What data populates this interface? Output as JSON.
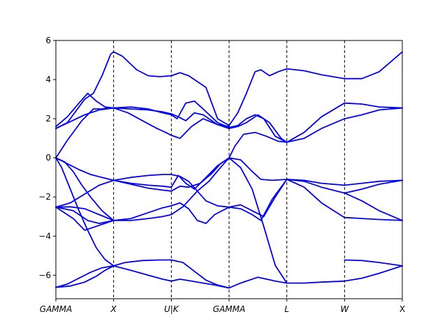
{
  "chart_data": {
    "type": "line",
    "title": "",
    "xlabel": "",
    "ylabel": "",
    "xlim": [
      0,
      6
    ],
    "ylim": [
      -7.2,
      6
    ],
    "grid": false,
    "legend": "none",
    "line_color": "#0000ee",
    "y_ticks": [
      {
        "value": -6,
        "label": "−6"
      },
      {
        "value": -4,
        "label": "−4"
      },
      {
        "value": -2,
        "label": "−2"
      },
      {
        "value": 0,
        "label": "0"
      },
      {
        "value": 2,
        "label": "2"
      },
      {
        "value": 4,
        "label": "4"
      },
      {
        "value": 6,
        "label": "6"
      }
    ],
    "x_ticks": [
      {
        "value": 0,
        "label": "GAMMA",
        "italic": true
      },
      {
        "value": 1,
        "label": "X",
        "italic": true
      },
      {
        "value": 2,
        "label": "U|K",
        "italic": true
      },
      {
        "value": 3,
        "label": "GAMMA",
        "italic": true
      },
      {
        "value": 4,
        "label": "L",
        "italic": true
      },
      {
        "value": 5,
        "label": "W",
        "italic": true
      },
      {
        "value": 6,
        "label": "X",
        "italic": false
      }
    ],
    "high_symmetry_lines": [
      1,
      2,
      3,
      4,
      5
    ],
    "series": [
      {
        "x": [
          0,
          0.25,
          0.5,
          0.7,
          0.85,
          1.0
        ],
        "y": [
          -6.62,
          -6.55,
          -6.35,
          -6.05,
          -5.75,
          -5.52
        ]
      },
      {
        "x": [
          0,
          0.2,
          0.4,
          0.6,
          0.8,
          1.0
        ],
        "y": [
          -6.62,
          -6.45,
          -6.15,
          -5.85,
          -5.62,
          -5.52
        ]
      },
      {
        "x": [
          1.0,
          1.3,
          1.6,
          1.85,
          2.0
        ],
        "y": [
          -5.52,
          -5.75,
          -6.0,
          -6.2,
          -6.3
        ]
      },
      {
        "x": [
          1.0,
          1.2,
          1.5,
          1.8,
          2.0
        ],
        "y": [
          -5.52,
          -5.35,
          -5.25,
          -5.22,
          -5.22
        ]
      },
      {
        "x": [
          2.0,
          2.15,
          2.35,
          2.55,
          2.75,
          3.0
        ],
        "y": [
          -6.3,
          -6.2,
          -6.3,
          -6.4,
          -6.5,
          -6.65
        ]
      },
      {
        "x": [
          2.0,
          2.2,
          2.4,
          2.6,
          2.8,
          3.0
        ],
        "y": [
          -5.22,
          -5.35,
          -5.8,
          -6.25,
          -6.5,
          -6.65
        ]
      },
      {
        "x": [
          3.0,
          3.2,
          3.5,
          3.8,
          4.0
        ],
        "y": [
          -6.65,
          -6.4,
          -6.1,
          -6.3,
          -6.4
        ]
      },
      {
        "x": [
          4.0,
          4.3,
          4.6,
          5.0
        ],
        "y": [
          -6.4,
          -6.4,
          -6.35,
          -6.3
        ]
      },
      {
        "x": [
          5.0,
          5.3,
          5.6,
          6.0
        ],
        "y": [
          -6.3,
          -6.15,
          -5.9,
          -5.52
        ]
      },
      {
        "x": [
          5.0,
          5.3,
          5.6,
          6.0
        ],
        "y": [
          -5.22,
          -5.25,
          -5.35,
          -5.52
        ]
      },
      {
        "x": [
          0,
          0.1,
          0.25,
          0.4,
          0.55,
          0.7,
          0.85,
          1.0
        ],
        "y": [
          0.0,
          -0.5,
          -1.6,
          -2.7,
          -3.7,
          -4.6,
          -5.2,
          -5.52
        ]
      },
      {
        "x": [
          0,
          0.15,
          0.3,
          0.45,
          0.6,
          0.8,
          1.0
        ],
        "y": [
          0.0,
          -0.2,
          -0.7,
          -1.4,
          -2.0,
          -2.7,
          -3.2
        ]
      },
      {
        "x": [
          0,
          0.2,
          0.4,
          0.6,
          0.8,
          1.0
        ],
        "y": [
          0.0,
          -0.3,
          -0.6,
          -0.85,
          -1.0,
          -1.15
        ]
      },
      {
        "x": [
          0,
          0.25,
          0.5,
          0.75,
          1.0
        ],
        "y": [
          -2.52,
          -2.3,
          -1.85,
          -1.4,
          -1.15
        ]
      },
      {
        "x": [
          0,
          0.3,
          0.55,
          0.75,
          1.0
        ],
        "y": [
          -2.52,
          -2.7,
          -3.2,
          -3.35,
          -3.2
        ]
      },
      {
        "x": [
          0,
          0.25,
          0.5,
          0.75,
          1.0
        ],
        "y": [
          -2.52,
          -2.5,
          -2.6,
          -2.9,
          -3.2
        ]
      },
      {
        "x": [
          0,
          0.3,
          0.5,
          0.7,
          1.0
        ],
        "y": [
          -2.52,
          -3.1,
          -3.7,
          -3.5,
          -3.2
        ]
      },
      {
        "x": [
          1.0,
          1.3,
          1.6,
          1.85,
          2.0
        ],
        "y": [
          -1.15,
          -1.0,
          -0.9,
          -0.85,
          -0.85
        ]
      },
      {
        "x": [
          1.0,
          1.3,
          1.6,
          1.85,
          2.0
        ],
        "y": [
          -1.15,
          -1.3,
          -1.4,
          -1.45,
          -1.5
        ]
      },
      {
        "x": [
          1.0,
          1.3,
          1.6,
          1.85,
          2.0
        ],
        "y": [
          -1.15,
          -1.35,
          -1.55,
          -1.65,
          -1.7
        ]
      },
      {
        "x": [
          1.0,
          1.3,
          1.6,
          1.85,
          2.0
        ],
        "y": [
          -3.2,
          -3.1,
          -2.8,
          -2.55,
          -2.45
        ]
      },
      {
        "x": [
          1.0,
          1.3,
          1.6,
          1.85,
          2.0
        ],
        "y": [
          -3.2,
          -3.2,
          -3.1,
          -3.0,
          -2.9
        ]
      },
      {
        "x": [
          2.0,
          2.15,
          2.3,
          2.45,
          2.6,
          2.8,
          3.0
        ],
        "y": [
          -0.85,
          -0.95,
          -1.2,
          -1.7,
          -2.2,
          -2.45,
          -2.52
        ]
      },
      {
        "x": [
          2.0,
          2.12,
          2.25,
          2.4,
          2.6,
          2.8,
          3.0
        ],
        "y": [
          -1.5,
          -0.9,
          -1.3,
          -1.6,
          -1.0,
          -0.4,
          0.0
        ]
      },
      {
        "x": [
          2.0,
          2.15,
          2.3,
          2.5,
          2.7,
          2.85,
          3.0
        ],
        "y": [
          -1.7,
          -1.45,
          -1.5,
          -1.3,
          -0.8,
          -0.3,
          0.0
        ]
      },
      {
        "x": [
          2.0,
          2.15,
          2.3,
          2.45,
          2.6,
          2.75,
          3.0
        ],
        "y": [
          -2.45,
          -2.3,
          -2.6,
          -3.2,
          -3.35,
          -2.9,
          -2.52
        ]
      },
      {
        "x": [
          2.0,
          2.2,
          2.45,
          2.65,
          2.85,
          3.0
        ],
        "y": [
          -2.9,
          -2.5,
          -1.7,
          -1.2,
          -0.5,
          0.0
        ]
      },
      {
        "x": [
          3.0,
          3.2,
          3.4,
          3.6,
          3.8,
          4.0
        ],
        "y": [
          0.0,
          -0.5,
          -1.6,
          -3.5,
          -5.5,
          -6.4
        ]
      },
      {
        "x": [
          3.0,
          3.2,
          3.4,
          3.55,
          3.75,
          4.0
        ],
        "y": [
          0.0,
          -0.1,
          -0.7,
          -1.1,
          -1.15,
          -1.1
        ]
      },
      {
        "x": [
          3.0,
          3.2,
          3.4,
          3.6,
          3.8,
          4.0
        ],
        "y": [
          -2.52,
          -2.4,
          -2.7,
          -3.0,
          -2.0,
          -1.1
        ]
      },
      {
        "x": [
          3.0,
          3.2,
          3.4,
          3.55,
          3.75,
          4.0
        ],
        "y": [
          -2.52,
          -2.6,
          -2.9,
          -3.2,
          -2.1,
          -1.1
        ]
      },
      {
        "x": [
          4.0,
          4.3,
          4.6,
          5.0
        ],
        "y": [
          -1.1,
          -1.15,
          -1.3,
          -1.4
        ]
      },
      {
        "x": [
          4.0,
          4.3,
          4.6,
          5.0
        ],
        "y": [
          -1.1,
          -1.2,
          -1.5,
          -1.8
        ]
      },
      {
        "x": [
          4.0,
          4.3,
          4.6,
          5.0
        ],
        "y": [
          -1.1,
          -1.5,
          -2.3,
          -3.05
        ]
      },
      {
        "x": [
          5.0,
          5.3,
          5.6,
          6.0
        ],
        "y": [
          -1.4,
          -1.3,
          -1.2,
          -1.15
        ]
      },
      {
        "x": [
          5.0,
          5.3,
          5.6,
          6.0
        ],
        "y": [
          -1.8,
          -1.6,
          -1.35,
          -1.15
        ]
      },
      {
        "x": [
          5.0,
          5.3,
          5.6,
          6.0
        ],
        "y": [
          -1.8,
          -2.2,
          -2.7,
          -3.2
        ]
      },
      {
        "x": [
          5.0,
          5.3,
          5.6,
          6.0
        ],
        "y": [
          -3.05,
          -3.1,
          -3.15,
          -3.2
        ]
      },
      {
        "x": [
          0,
          0.2,
          0.45,
          0.65,
          0.8,
          0.9,
          1.0
        ],
        "y": [
          0.0,
          0.9,
          1.9,
          2.5,
          2.5,
          2.55,
          2.55
        ]
      },
      {
        "x": [
          0,
          0.2,
          0.35,
          0.5,
          0.65,
          0.8,
          0.95,
          1.0
        ],
        "y": [
          1.5,
          1.8,
          2.4,
          3.0,
          3.3,
          4.2,
          5.3,
          5.42
        ]
      },
      {
        "x": [
          0,
          0.2,
          0.4,
          0.55,
          0.7,
          0.85,
          1.0
        ],
        "y": [
          1.6,
          2.1,
          2.8,
          3.3,
          2.9,
          2.6,
          2.55
        ]
      },
      {
        "x": [
          0,
          0.25,
          0.5,
          0.75,
          1.0
        ],
        "y": [
          1.5,
          1.85,
          2.2,
          2.45,
          2.55
        ]
      },
      {
        "x": [
          1.0,
          1.15,
          1.4,
          1.6,
          1.8,
          2.0
        ],
        "y": [
          5.42,
          5.2,
          4.5,
          4.2,
          4.15,
          4.2
        ]
      },
      {
        "x": [
          1.0,
          1.3,
          1.6,
          1.85,
          2.0
        ],
        "y": [
          2.55,
          2.5,
          2.45,
          2.35,
          2.25
        ]
      },
      {
        "x": [
          1.0,
          1.3,
          1.6,
          1.85,
          2.0
        ],
        "y": [
          2.55,
          2.6,
          2.5,
          2.3,
          2.2
        ]
      },
      {
        "x": [
          1.0,
          1.25,
          1.5,
          1.75,
          1.9,
          2.0
        ],
        "y": [
          2.55,
          2.3,
          1.9,
          1.5,
          1.3,
          1.15
        ]
      },
      {
        "x": [
          2.0,
          2.15,
          2.3,
          2.45,
          2.6,
          2.8,
          3.0
        ],
        "y": [
          4.2,
          4.35,
          4.2,
          3.9,
          3.6,
          2.0,
          1.65
        ]
      },
      {
        "x": [
          2.0,
          2.12,
          2.25,
          2.4,
          2.55,
          2.8,
          3.0
        ],
        "y": [
          2.25,
          2.1,
          1.9,
          2.3,
          2.2,
          1.7,
          1.6
        ]
      },
      {
        "x": [
          2.0,
          2.1,
          2.25,
          2.4,
          2.55,
          2.8,
          3.0
        ],
        "y": [
          2.2,
          2.0,
          2.8,
          2.9,
          2.5,
          1.8,
          1.55
        ]
      },
      {
        "x": [
          2.0,
          2.15,
          2.35,
          2.55,
          2.8,
          3.0
        ],
        "y": [
          1.15,
          1.0,
          1.6,
          2.0,
          1.7,
          1.5
        ]
      },
      {
        "x": [
          3.0,
          3.15,
          3.3,
          3.45,
          3.55,
          3.7,
          3.85,
          4.0
        ],
        "y": [
          1.65,
          2.3,
          3.3,
          4.4,
          4.5,
          4.2,
          4.4,
          4.55
        ]
      },
      {
        "x": [
          3.0,
          3.15,
          3.3,
          3.45,
          3.6,
          3.8,
          4.0
        ],
        "y": [
          1.55,
          1.65,
          2.0,
          2.2,
          2.0,
          1.1,
          0.8
        ]
      },
      {
        "x": [
          3.0,
          3.15,
          3.3,
          3.5,
          3.7,
          3.9,
          4.0
        ],
        "y": [
          1.5,
          1.6,
          1.8,
          2.2,
          1.8,
          1.0,
          0.8
        ]
      },
      {
        "x": [
          3.0,
          3.1,
          3.25,
          3.45,
          3.65,
          3.85,
          4.0
        ],
        "y": [
          0.0,
          0.6,
          1.2,
          1.3,
          1.1,
          0.85,
          0.8
        ]
      },
      {
        "x": [
          4.0,
          4.3,
          4.6,
          5.0
        ],
        "y": [
          4.55,
          4.45,
          4.25,
          4.05
        ]
      },
      {
        "x": [
          4.0,
          4.3,
          4.6,
          5.0
        ],
        "y": [
          0.8,
          1.3,
          2.1,
          2.8
        ]
      },
      {
        "x": [
          4.0,
          4.3,
          4.6,
          5.0
        ],
        "y": [
          0.8,
          1.0,
          1.5,
          2.0
        ]
      },
      {
        "x": [
          5.0,
          5.3,
          5.6,
          6.0
        ],
        "y": [
          4.05,
          4.05,
          4.4,
          5.42
        ]
      },
      {
        "x": [
          5.0,
          5.3,
          5.6,
          6.0
        ],
        "y": [
          2.8,
          2.75,
          2.6,
          2.55
        ]
      },
      {
        "x": [
          5.0,
          5.3,
          5.6,
          6.0
        ],
        "y": [
          2.0,
          2.2,
          2.45,
          2.55
        ]
      }
    ]
  }
}
